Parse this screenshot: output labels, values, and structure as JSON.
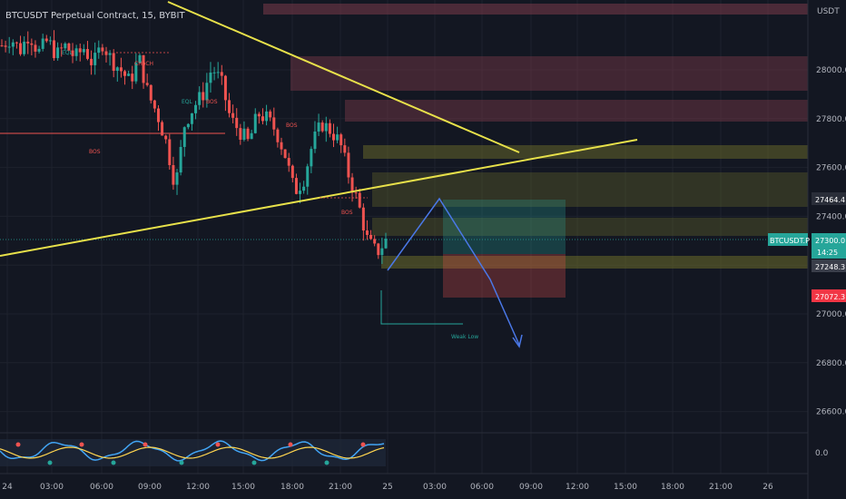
{
  "header": {
    "title": "BTCUSDT Perpetual Contract, 15, BYBIT",
    "currency": "USDT"
  },
  "colors": {
    "background": "#131722",
    "up": "#26a69a",
    "down": "#ef5350",
    "trendline": "#e8e14a",
    "projection": "#4a78e8",
    "supply_zone": "#a04a5a",
    "demand_zone": "#8a8a3a"
  },
  "price_tags": {
    "symbol": "BTCUSDT.P",
    "last": "27300.0",
    "countdown": "14:25",
    "level_a": "27464.4",
    "level_b": "27248.3",
    "level_c": "27072.3",
    "oscillator_zero": "0.0"
  },
  "chart_data": {
    "type": "candlestick",
    "title": "BTCUSDT Perpetual Contract, 15, BYBIT",
    "y_axis_ticks": [
      28000.0,
      27800.0,
      27600.0,
      27400.0,
      27200.0,
      27000.0,
      26800.0,
      26600.0
    ],
    "y_axis_tick_labels": [
      "28000.0",
      "27800.0",
      "27600.0",
      "27400.0",
      "27200.0",
      "27000.0",
      "26800.0",
      "26600.0"
    ],
    "x_axis_tick_labels": [
      "24",
      "03:00",
      "06:00",
      "09:00",
      "12:00",
      "15:00",
      "18:00",
      "21:00",
      "25",
      "03:00",
      "06:00",
      "09:00",
      "12:00",
      "15:00",
      "18:00",
      "21:00",
      "26"
    ],
    "ylim": [
      26520,
      28160
    ],
    "annotations": [
      "EQL",
      "CHoCH",
      "EQL",
      "BOS",
      "BOS",
      "BOS",
      "BOS",
      "Weak Low"
    ],
    "last_price": 27300.0,
    "series": [
      {
        "name": "BTCUSDT.P",
        "close_path": [
          28100,
          28130,
          28080,
          28150,
          28070,
          28120,
          28060,
          28100,
          28050,
          28090,
          28020,
          28110,
          28040,
          28000,
          27950,
          28050,
          27900,
          27820,
          27700,
          27520,
          27780,
          27850,
          27900,
          28010,
          27950,
          27800,
          27750,
          27700,
          27820,
          27800,
          27750,
          27650,
          27500,
          27550,
          27700,
          27780,
          27750,
          27700,
          27560,
          27450,
          27300,
          27250,
          27300
        ]
      }
    ]
  }
}
